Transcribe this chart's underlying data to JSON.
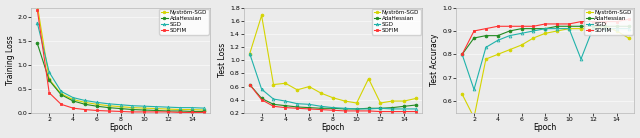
{
  "epochs": [
    1,
    2,
    3,
    4,
    5,
    6,
    7,
    8,
    9,
    10,
    11,
    12,
    13,
    14,
    15
  ],
  "train_loss": {
    "Nyström-SGD": [
      2.25,
      0.7,
      0.4,
      0.28,
      0.22,
      0.18,
      0.15,
      0.13,
      0.11,
      0.1,
      0.09,
      0.08,
      0.07,
      0.07,
      0.06
    ],
    "AdaHessian": [
      1.45,
      0.68,
      0.38,
      0.25,
      0.18,
      0.14,
      0.11,
      0.09,
      0.07,
      0.06,
      0.05,
      0.04,
      0.04,
      0.03,
      0.03
    ],
    "SGD": [
      1.88,
      0.85,
      0.45,
      0.32,
      0.26,
      0.22,
      0.19,
      0.17,
      0.15,
      0.14,
      0.13,
      0.12,
      0.11,
      0.11,
      0.1
    ],
    "SOFIM": [
      2.15,
      0.42,
      0.18,
      0.1,
      0.07,
      0.05,
      0.04,
      0.03,
      0.02,
      0.02,
      0.02,
      0.02,
      0.01,
      0.01,
      0.01
    ]
  },
  "test_loss": {
    "Nyström-SGD": [
      1.1,
      1.68,
      0.63,
      0.65,
      0.55,
      0.6,
      0.5,
      0.43,
      0.38,
      0.35,
      0.72,
      0.35,
      0.38,
      0.38,
      0.42
    ],
    "AdaHessian": [
      0.63,
      0.42,
      0.33,
      0.31,
      0.29,
      0.28,
      0.27,
      0.27,
      0.26,
      0.26,
      0.27,
      0.27,
      0.28,
      0.3,
      0.32
    ],
    "SGD": [
      1.1,
      0.56,
      0.41,
      0.38,
      0.34,
      0.33,
      0.3,
      0.28,
      0.27,
      0.26,
      0.26,
      0.27,
      0.26,
      0.26,
      0.26
    ],
    "SOFIM": [
      0.63,
      0.4,
      0.3,
      0.28,
      0.27,
      0.26,
      0.25,
      0.24,
      0.23,
      0.23,
      0.23,
      0.22,
      0.22,
      0.22,
      0.22
    ]
  },
  "test_acc": {
    "Nyström-SGD": [
      0.63,
      0.53,
      0.78,
      0.8,
      0.82,
      0.84,
      0.87,
      0.89,
      0.9,
      0.91,
      0.91,
      0.91,
      0.92,
      0.9,
      0.87
    ],
    "AdaHessian": [
      0.8,
      0.87,
      0.88,
      0.88,
      0.9,
      0.91,
      0.91,
      0.91,
      0.92,
      0.92,
      0.92,
      0.92,
      0.92,
      0.92,
      0.92
    ],
    "SGD": [
      0.8,
      0.65,
      0.83,
      0.86,
      0.88,
      0.89,
      0.9,
      0.91,
      0.91,
      0.91,
      0.78,
      0.91,
      0.91,
      0.91,
      0.91
    ],
    "SOFIM": [
      0.8,
      0.9,
      0.91,
      0.92,
      0.92,
      0.92,
      0.92,
      0.93,
      0.93,
      0.93,
      0.94,
      0.94,
      0.94,
      0.94,
      0.95
    ]
  },
  "colors": {
    "Nyström-SGD": "#d4d400",
    "AdaHessian": "#228B22",
    "SGD": "#20B2AA",
    "SOFIM": "#FF3333"
  },
  "markers": {
    "Nyström-SGD": "o",
    "AdaHessian": "o",
    "SGD": "^",
    "SOFIM": "s"
  },
  "markerfacecolors": {
    "Nyström-SGD": "#d4d400",
    "AdaHessian": "#228B22",
    "SGD": "none",
    "SOFIM": "#FF3333"
  },
  "labels": [
    "Nyström-SGD",
    "AdaHessian",
    "SGD",
    "SOFIM"
  ],
  "train_ylabel": "Training Loss",
  "test_loss_ylabel": "Test Loss",
  "test_acc_ylabel": "Test Accuracy",
  "xlabel": "Epoch",
  "bg_color": "#ebebeb",
  "train_ylim": [
    0,
    2.2
  ],
  "test_loss_ylim": [
    0.2,
    1.8
  ],
  "test_acc_ylim": [
    0.55,
    1.0
  ],
  "xticks": [
    2,
    4,
    6,
    8,
    10,
    12,
    14
  ]
}
